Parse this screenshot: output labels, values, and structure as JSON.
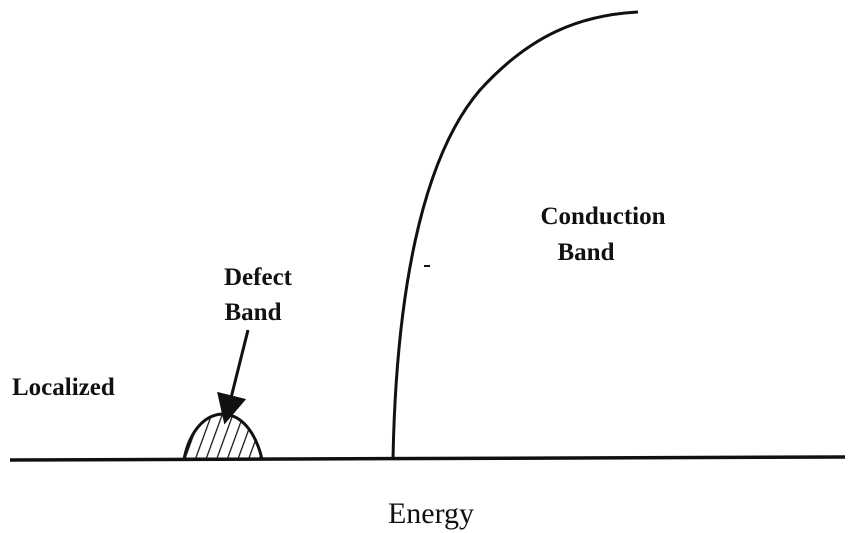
{
  "labels": {
    "conduction": [
      "Conduction",
      "Band"
    ],
    "defect": [
      "Defect",
      "Band"
    ],
    "localized": "Localized",
    "axis": "Energy"
  }
}
